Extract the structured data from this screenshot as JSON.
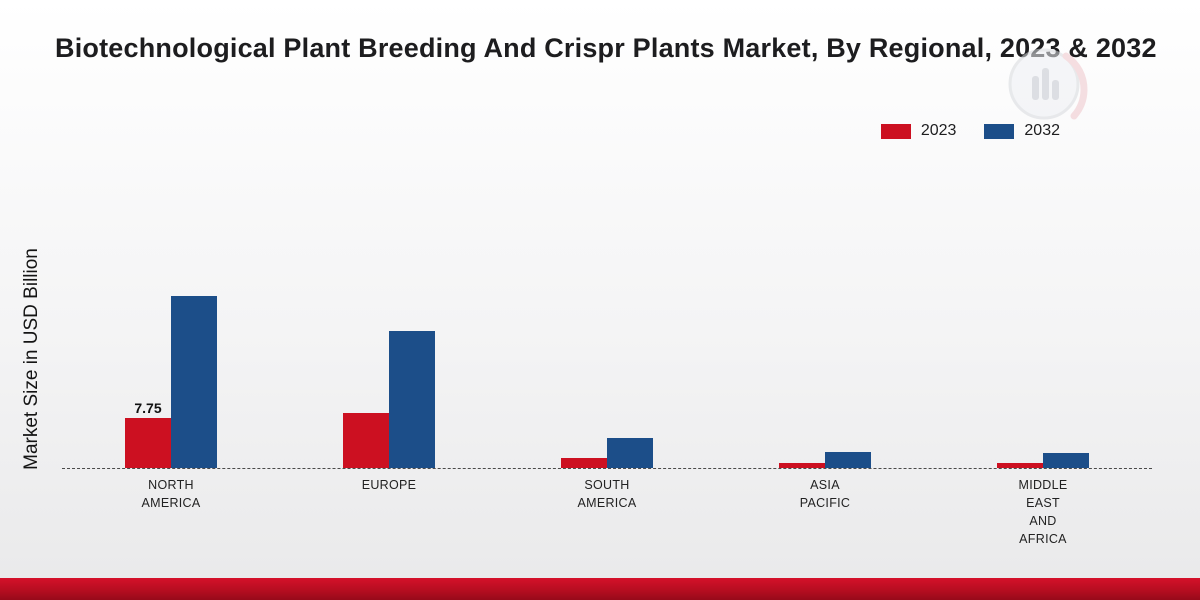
{
  "title": "Biotechnological Plant Breeding And Crispr Plants Market, By Regional, 2023 & 2032",
  "ylabel": "Market Size in USD Billion",
  "legend": [
    {
      "label": "2023",
      "color": "#cc1021"
    },
    {
      "label": "2032",
      "color": "#1c4e89"
    }
  ],
  "colors": {
    "series_2023": "#cc1021",
    "series_2032": "#1c4e89",
    "footer_red": "#c00f22"
  },
  "chart_data": {
    "type": "bar",
    "title": "Biotechnological Plant Breeding And Crispr Plants Market, By Regional, 2023 & 2032",
    "xlabel": "",
    "ylabel": "Market Size in USD Billion",
    "categories": [
      "North America",
      "Europe",
      "South America",
      "Asia Pacific",
      "Middle East and Africa"
    ],
    "category_lines": [
      [
        "NORTH",
        "AMERICA"
      ],
      [
        "EUROPE"
      ],
      [
        "SOUTH",
        "AMERICA"
      ],
      [
        "ASIA",
        "PACIFIC"
      ],
      [
        "MIDDLE",
        "EAST",
        "AND",
        "AFRICA"
      ]
    ],
    "series": [
      {
        "name": "2023",
        "color": "#cc1021",
        "values": [
          7.75,
          8.5,
          1.5,
          0.8,
          0.75
        ]
      },
      {
        "name": "2032",
        "color": "#1c4e89",
        "values": [
          26.7,
          21.2,
          4.7,
          2.5,
          2.3
        ]
      }
    ],
    "value_labels": [
      {
        "series": "2023",
        "category": "North America",
        "text": "7.75"
      }
    ],
    "ylim": [
      0,
      30
    ],
    "grid": false,
    "baseline_style": "dashed",
    "legend_position": "top-right"
  }
}
